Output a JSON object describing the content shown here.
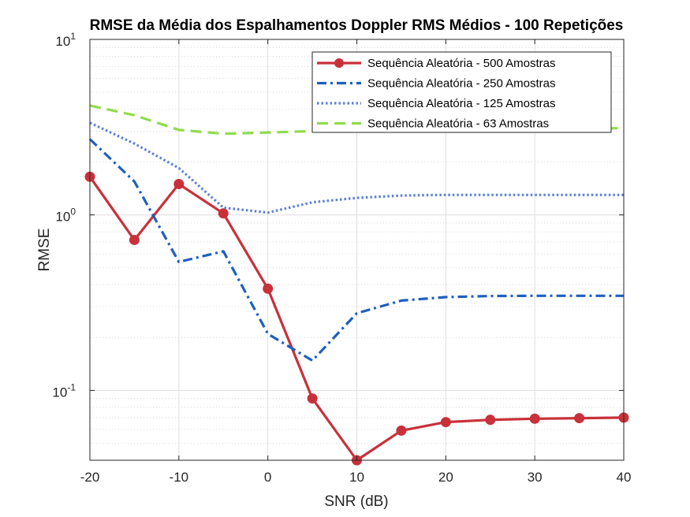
{
  "chart_data": {
    "type": "line",
    "title": "RMSE da Média dos Espalhamentos Doppler RMS Médios - 100 Repetições",
    "xlabel": "SNR (dB)",
    "ylabel": "RMSE",
    "xlim": [
      -20,
      40
    ],
    "ylim": [
      0.04,
      10
    ],
    "yscale": "log",
    "grid": true,
    "minor_grid": true,
    "legend_position": "top-right",
    "x_ticks": [
      {
        "value": -20,
        "label": "-20"
      },
      {
        "value": -10,
        "label": "-10"
      },
      {
        "value": 0,
        "label": "0"
      },
      {
        "value": 10,
        "label": "10"
      },
      {
        "value": 20,
        "label": "20"
      },
      {
        "value": 30,
        "label": "30"
      },
      {
        "value": 40,
        "label": "40"
      }
    ],
    "y_ticks": [
      {
        "value": 0.1,
        "base": "10",
        "exp": "-1"
      },
      {
        "value": 1,
        "base": "10",
        "exp": "0"
      },
      {
        "value": 10,
        "base": "10",
        "exp": "1"
      }
    ],
    "x": [
      -20,
      -15,
      -10,
      -5,
      0,
      5,
      10,
      15,
      20,
      25,
      30,
      35,
      40
    ],
    "series": [
      {
        "name": "Sequência Aleatória - 500 Amostras",
        "color": "#c8313a",
        "style": "solid",
        "marker": "circle",
        "values": [
          1.65,
          0.72,
          1.5,
          1.02,
          0.38,
          0.09,
          0.04,
          0.059,
          0.066,
          0.068,
          0.069,
          0.0695,
          0.07
        ]
      },
      {
        "name": "Sequência Aleatória - 250 Amostras",
        "color": "#1f5fbf",
        "style": "dashdot",
        "marker": "none",
        "values": [
          2.7,
          1.55,
          0.54,
          0.62,
          0.21,
          0.148,
          0.275,
          0.325,
          0.34,
          0.345,
          0.346,
          0.346,
          0.346
        ]
      },
      {
        "name": "Sequência Aleatória - 125 Amostras",
        "color": "#5b7fd9",
        "style": "dotted",
        "marker": "none",
        "values": [
          3.35,
          2.55,
          1.85,
          1.1,
          1.03,
          1.18,
          1.25,
          1.29,
          1.3,
          1.3,
          1.3,
          1.3,
          1.3
        ]
      },
      {
        "name": "Sequência Aleatória - 63 Amostras",
        "color": "#8fdc4a",
        "style": "dashed",
        "marker": "none",
        "values": [
          4.2,
          3.7,
          3.05,
          2.9,
          2.95,
          3.0,
          3.05,
          3.08,
          3.1,
          3.1,
          3.1,
          3.1,
          3.12
        ]
      }
    ]
  }
}
